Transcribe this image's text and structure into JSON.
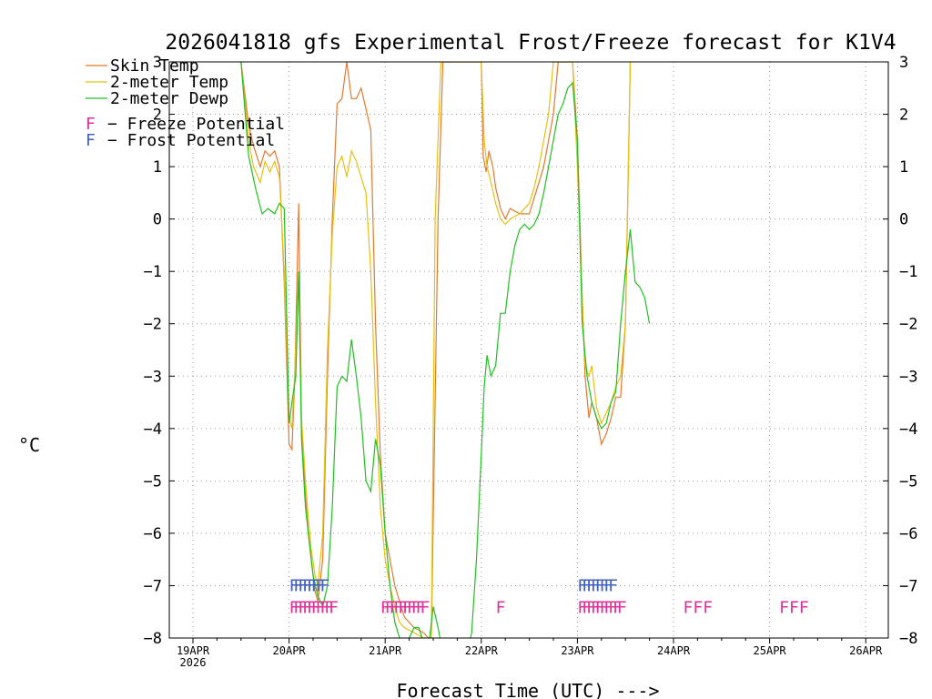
{
  "chart_data": {
    "type": "line",
    "title": "2026041818 gfs Experimental Frost/Freeze forecast for K1V4",
    "ylabel": "°C",
    "xlabel": "Forecast Time (UTC) --->",
    "ylim": [
      -8,
      3
    ],
    "yticks": [
      3,
      2,
      1,
      0,
      -1,
      -2,
      -3,
      -4,
      -5,
      -6,
      -7,
      -8
    ],
    "ytick_labels": [
      "3",
      "2",
      "1",
      "0",
      "−1",
      "−2",
      "−3",
      "−4",
      "−5",
      "−6",
      "−7",
      "−8"
    ],
    "xlim": [
      -0.2,
      7.0
    ],
    "xticks": [
      {
        "day": 0,
        "label": "19APR",
        "sublabel": "2026"
      },
      {
        "day": 1,
        "label": "20APR"
      },
      {
        "day": 2,
        "label": "21APR"
      },
      {
        "day": 3,
        "label": "22APR"
      },
      {
        "day": 4,
        "label": "23APR"
      },
      {
        "day": 5,
        "label": "24APR"
      },
      {
        "day": 6,
        "label": "25APR"
      },
      {
        "day": 7,
        "label": "26APR"
      }
    ],
    "grid": true,
    "series": [
      {
        "name": "Skin Temp",
        "color": "#e07a30",
        "x": [
          0.5,
          0.58,
          0.63,
          0.7,
          0.75,
          0.8,
          0.85,
          0.9,
          0.95,
          1.0,
          1.03,
          1.06,
          1.1,
          1.13,
          1.17,
          1.2,
          1.23,
          1.27,
          1.3,
          1.35,
          1.4,
          1.45,
          1.5,
          1.55,
          1.6,
          1.65,
          1.7,
          1.75,
          1.8,
          1.85,
          1.9,
          1.95,
          2.0,
          2.05,
          2.1,
          2.15,
          2.2,
          2.3,
          2.4,
          2.45,
          2.48,
          2.55,
          2.6,
          3.0,
          3.02,
          3.05,
          3.08,
          3.12,
          3.15,
          3.2,
          3.25,
          3.3,
          3.4,
          3.5,
          3.55,
          3.6,
          3.65,
          3.7,
          3.75,
          3.8,
          3.85,
          3.9,
          3.95,
          4.0,
          4.05,
          4.08,
          4.12,
          4.15,
          4.2,
          4.25,
          4.3,
          4.35,
          4.4,
          4.45,
          4.5,
          4.55
        ],
        "values": [
          3.0,
          1.8,
          1.4,
          1.0,
          1.3,
          1.2,
          1.3,
          1.0,
          -1.2,
          -4.3,
          -4.4,
          -3.0,
          0.3,
          -4.0,
          -5.3,
          -6.0,
          -6.5,
          -7.1,
          -7.3,
          -6.5,
          -3.0,
          0.0,
          2.2,
          2.3,
          3.0,
          2.3,
          2.3,
          2.5,
          2.1,
          1.7,
          -2.0,
          -4.5,
          -6.0,
          -6.5,
          -7.0,
          -7.3,
          -7.6,
          -7.8,
          -7.9,
          -8.0,
          -8.0,
          0.0,
          3.0,
          3.0,
          1.2,
          0.9,
          1.3,
          1.0,
          0.6,
          0.2,
          0.0,
          0.2,
          0.1,
          0.1,
          0.4,
          0.7,
          1.0,
          1.5,
          2.0,
          3.0,
          3.0,
          3.0,
          3.0,
          1.5,
          -1.5,
          -3.0,
          -3.8,
          -3.5,
          -3.8,
          -4.3,
          -4.1,
          -3.8,
          -3.4,
          -3.4,
          -2.0,
          3.0
        ]
      },
      {
        "name": "2-meter Temp",
        "color": "#e8c010",
        "x": [
          0.5,
          0.58,
          0.63,
          0.7,
          0.75,
          0.8,
          0.85,
          0.9,
          0.95,
          1.0,
          1.03,
          1.06,
          1.1,
          1.13,
          1.17,
          1.2,
          1.23,
          1.27,
          1.3,
          1.35,
          1.4,
          1.45,
          1.5,
          1.55,
          1.6,
          1.65,
          1.7,
          1.75,
          1.8,
          1.85,
          1.9,
          1.95,
          2.0,
          2.05,
          2.1,
          2.15,
          2.2,
          2.3,
          2.4,
          2.45,
          2.48,
          2.52,
          2.58,
          3.0,
          3.03,
          3.06,
          3.1,
          3.15,
          3.2,
          3.25,
          3.3,
          3.4,
          3.5,
          3.55,
          3.6,
          3.65,
          3.7,
          3.75,
          3.8,
          3.85,
          3.9,
          3.95,
          4.0,
          4.05,
          4.08,
          4.12,
          4.15,
          4.2,
          4.25,
          4.3,
          4.35,
          4.4,
          4.45,
          4.5,
          4.55
        ],
        "values": [
          3.0,
          1.5,
          1.0,
          0.7,
          1.1,
          0.9,
          1.1,
          0.8,
          -1.0,
          -3.8,
          -4.0,
          -2.9,
          -1.0,
          -3.8,
          -5.0,
          -5.7,
          -6.3,
          -6.8,
          -7.0,
          -6.0,
          -2.5,
          -0.3,
          1.0,
          1.2,
          0.8,
          1.3,
          1.1,
          0.8,
          0.5,
          -1.0,
          -3.5,
          -5.5,
          -6.5,
          -7.0,
          -7.4,
          -7.7,
          -7.8,
          -7.9,
          -8.0,
          -8.0,
          -8.0,
          0.0,
          3.0,
          3.0,
          1.5,
          1.0,
          0.7,
          0.3,
          0.0,
          -0.1,
          0.0,
          0.1,
          0.3,
          0.6,
          1.0,
          1.5,
          2.0,
          3.0,
          3.0,
          3.0,
          3.0,
          3.0,
          1.0,
          -1.5,
          -2.8,
          -3.0,
          -2.8,
          -3.6,
          -3.9,
          -3.7,
          -3.5,
          -3.2,
          -3.0,
          -2.0,
          3.0
        ]
      },
      {
        "name": "2-meter Dewp",
        "color": "#20c020",
        "x": [
          0.5,
          0.58,
          0.65,
          0.72,
          0.78,
          0.85,
          0.9,
          0.95,
          1.0,
          1.03,
          1.07,
          1.1,
          1.13,
          1.17,
          1.2,
          1.25,
          1.3,
          1.35,
          1.4,
          1.45,
          1.5,
          1.55,
          1.6,
          1.65,
          1.7,
          1.75,
          1.8,
          1.85,
          1.9,
          1.95,
          2.0,
          2.05,
          2.1,
          2.15,
          2.2,
          2.25,
          2.3,
          2.35,
          2.4,
          2.45,
          2.5,
          2.55,
          2.6,
          2.65,
          2.7,
          2.75,
          2.8,
          2.85,
          2.9,
          2.95,
          3.0,
          3.03,
          3.06,
          3.1,
          3.15,
          3.2,
          3.25,
          3.3,
          3.35,
          3.4,
          3.45,
          3.5,
          3.55,
          3.6,
          3.65,
          3.7,
          3.75,
          3.8,
          3.85,
          3.9,
          3.95,
          4.0,
          4.05,
          4.1,
          4.15,
          4.2,
          4.25,
          4.3,
          4.35,
          4.4,
          4.45,
          4.5,
          4.55,
          4.6,
          4.65,
          4.7,
          4.75
        ],
        "values": [
          3.0,
          1.2,
          0.6,
          0.1,
          0.2,
          0.1,
          0.3,
          0.2,
          -3.9,
          -3.5,
          -3.0,
          -1.0,
          -4.2,
          -5.5,
          -6.0,
          -6.8,
          -7.2,
          -7.4,
          -7.0,
          -5.5,
          -3.2,
          -3.0,
          -3.1,
          -2.3,
          -3.0,
          -3.8,
          -5.0,
          -5.2,
          -4.2,
          -4.7,
          -6.0,
          -7.0,
          -7.7,
          -8.0,
          -8.2,
          -8.0,
          -7.8,
          -7.8,
          -8.1,
          -8.2,
          -7.4,
          -7.8,
          -8.3,
          -8.5,
          -8.6,
          -8.6,
          -8.5,
          -8.3,
          -7.9,
          -6.5,
          -4.5,
          -3.2,
          -2.6,
          -3.0,
          -2.8,
          -1.8,
          -1.8,
          -1.0,
          -0.5,
          -0.2,
          -0.1,
          -0.2,
          -0.1,
          0.1,
          0.5,
          1.0,
          1.5,
          2.0,
          2.2,
          2.5,
          2.6,
          1.5,
          -2.0,
          -3.0,
          -3.5,
          -3.8,
          -4.0,
          -3.9,
          -3.5,
          -3.3,
          -2.0,
          -1.0,
          -0.2,
          -1.2,
          -1.3,
          -1.5,
          -2.0
        ]
      }
    ],
    "legend": [
      {
        "label": "Skin Temp",
        "color": "#e07a30"
      },
      {
        "label": "2-meter Temp",
        "color": "#e8c010"
      },
      {
        "label": "2-meter Dewp",
        "color": "#20c020"
      }
    ],
    "potential_legend": [
      {
        "symbol": "F",
        "label": "− Freeze Potential",
        "color": "#e0309a"
      },
      {
        "symbol": "F",
        "label": "− Frost Potential",
        "color": "#4060c0"
      }
    ],
    "frost_marks": [
      {
        "text": "FFFFFFFF",
        "day": 1.0,
        "color": "#4060c0"
      },
      {
        "text": "FFFFFFFF",
        "day": 4.0,
        "color": "#4060c0"
      }
    ],
    "freeze_marks": [
      {
        "text": "FFFFFFFFFF",
        "day": 1.0,
        "color": "#e0309a"
      },
      {
        "text": "FFFFFFFFFF",
        "day": 1.95,
        "color": "#e0309a"
      },
      {
        "text": "F",
        "day": 3.15,
        "color": "#e0309a"
      },
      {
        "text": "FFFFFFFFFF",
        "day": 4.0,
        "color": "#e0309a"
      },
      {
        "text": "FFF",
        "day": 5.1,
        "color": "#e0309a"
      },
      {
        "text": "FFF",
        "day": 6.1,
        "color": "#e0309a"
      }
    ]
  }
}
